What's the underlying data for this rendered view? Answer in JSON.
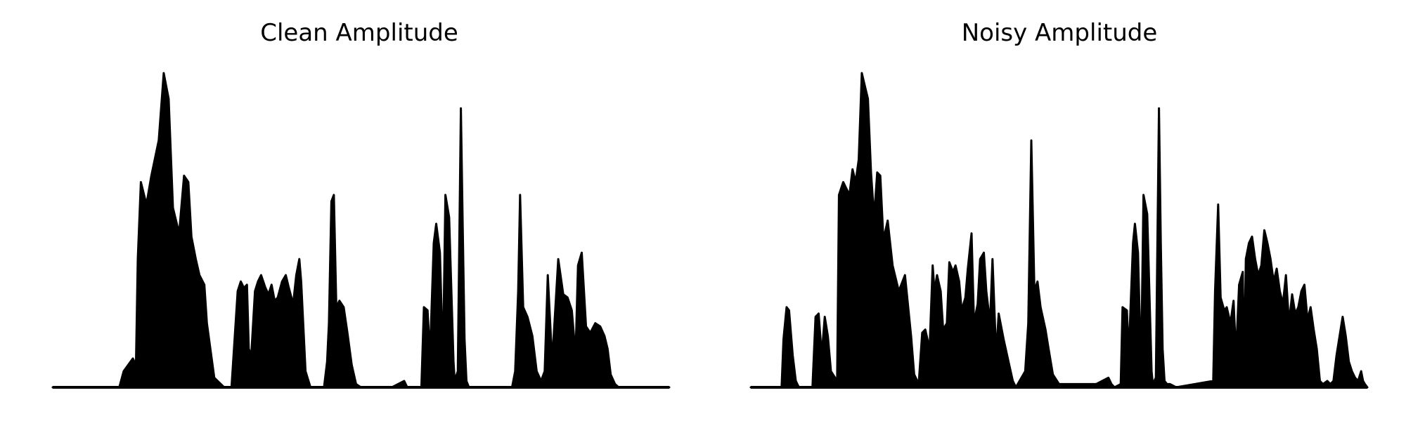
{
  "chart_data": [
    {
      "type": "area",
      "title": "Clean Amplitude",
      "xlabel": "",
      "ylabel": "",
      "axes_visible": false,
      "grid": false,
      "color": "#000000",
      "ylim": [
        0,
        1
      ],
      "description_of_values": "normalized amplitude envelope, 0 = baseline, 1 = highest peak",
      "segments": [
        {
          "x": [
            0,
            0.108,
            0.115,
            0.13,
            0.135,
            0.138,
            0.143,
            0.152,
            0.16,
            0.172,
            0.18,
            0.183,
            0.188,
            0.195,
            0.205,
            0.213,
            0.22,
            0.225,
            0.232,
            0.238,
            0.246,
            0.25,
            0.262,
            0.278,
            0.285
          ],
          "y": [
            0,
            0,
            0.05,
            0.09,
            0.07,
            0.4,
            0.64,
            0.57,
            0.66,
            0.77,
            0.98,
            0.95,
            0.9,
            0.56,
            0.48,
            0.66,
            0.64,
            0.47,
            0.4,
            0.35,
            0.32,
            0.2,
            0.03,
            0,
            0
          ]
        },
        {
          "x": [
            0.285,
            0.29,
            0.3,
            0.305,
            0.31,
            0.315,
            0.318,
            0.322,
            0.328,
            0.333,
            0.338,
            0.345,
            0.35,
            0.355,
            0.36,
            0.365,
            0.372,
            0.378,
            0.383,
            0.39,
            0.395,
            0.4,
            0.403,
            0.41,
            0.418,
            0.425,
            0.432
          ],
          "y": [
            0,
            0,
            0.3,
            0.33,
            0.31,
            0.32,
            0.12,
            0.1,
            0.3,
            0.33,
            0.35,
            0.31,
            0.29,
            0.32,
            0.27,
            0.28,
            0.33,
            0.35,
            0.31,
            0.26,
            0.35,
            0.4,
            0.33,
            0.05,
            0,
            0,
            0
          ]
        },
        {
          "x": [
            0.432,
            0.44,
            0.445,
            0.448,
            0.452,
            0.456,
            0.46,
            0.465,
            0.472,
            0.478,
            0.485,
            0.492,
            0.5,
            0.55,
            0.57,
            0.575,
            0.58
          ],
          "y": [
            0,
            0,
            0.08,
            0.2,
            0.58,
            0.6,
            0.25,
            0.27,
            0.25,
            0.17,
            0.07,
            0.01,
            0,
            0,
            0.02,
            0,
            0
          ]
        },
        {
          "x": [
            0.58,
            0.598,
            0.602,
            0.608,
            0.612,
            0.618,
            0.622,
            0.628,
            0.633,
            0.637,
            0.643,
            0.65,
            0.652,
            0.657,
            0.662,
            0.665,
            0.668,
            0.671,
            0.675,
            0.68,
            0.686
          ],
          "y": [
            0,
            0,
            0.25,
            0.24,
            0.1,
            0.45,
            0.51,
            0.42,
            0.08,
            0.6,
            0.53,
            0.08,
            0.02,
            0.05,
            0.87,
            0.5,
            0.15,
            0.02,
            0,
            0,
            0
          ]
        },
        {
          "x": [
            0.686,
            0.745,
            0.75,
            0.755,
            0.758,
            0.763,
            0.77,
            0.778,
            0.785,
            0.792,
            0.798,
            0.803,
            0.81,
            0.815,
            0.82,
            0.828,
            0.835,
            0.842,
            0.848,
            0.852,
            0.858,
            0.865,
            0.872,
            0.88,
            0.888,
            0.895,
            0.9,
            0.905,
            0.912,
            0.918,
            0.925,
            0.93,
            0.937,
            0.945,
            0.952,
            0.96,
            0.97,
            0.98,
            1
          ],
          "y": [
            0,
            0,
            0.05,
            0.3,
            0.6,
            0.25,
            0.22,
            0.16,
            0.05,
            0.02,
            0.05,
            0.35,
            0.08,
            0.24,
            0.4,
            0.29,
            0.28,
            0.24,
            0.1,
            0.38,
            0.42,
            0.19,
            0.17,
            0.2,
            0.19,
            0.16,
            0.12,
            0.04,
            0.01,
            0,
            0,
            0,
            0,
            0,
            0,
            0,
            0,
            0,
            0
          ]
        }
      ]
    },
    {
      "type": "area",
      "title": "Noisy Amplitude",
      "xlabel": "",
      "ylabel": "",
      "axes_visible": false,
      "grid": false,
      "color": "#000000",
      "ylim": [
        0,
        1
      ],
      "description_of_values": "normalized amplitude envelope, 0 = baseline, 1 = highest peak",
      "segments": [
        {
          "x": [
            0,
            0.05,
            0.053,
            0.058,
            0.062,
            0.068,
            0.073,
            0.078,
            0.1,
            0.105,
            0.11,
            0.115,
            0.12,
            0.125,
            0.13,
            0.14,
            0.143,
            0.15,
            0.155,
            0.16,
            0.165,
            0.17,
            0.175,
            0.18,
            0.185,
            0.19,
            0.195,
            0.2,
            0.205,
            0.21,
            0.215,
            0.222,
            0.23,
            0.24,
            0.25,
            0.26,
            0.265,
            0.27,
            0.272
          ],
          "y": [
            0,
            0,
            0.15,
            0.25,
            0.24,
            0.1,
            0.02,
            0,
            0,
            0.22,
            0.23,
            0.1,
            0.22,
            0.16,
            0.05,
            0.02,
            0.6,
            0.64,
            0.62,
            0.6,
            0.68,
            0.64,
            0.71,
            0.98,
            0.94,
            0.9,
            0.67,
            0.53,
            0.67,
            0.66,
            0.46,
            0.52,
            0.38,
            0.3,
            0.35,
            0.16,
            0.04,
            0.02,
            0
          ]
        },
        {
          "x": [
            0.272,
            0.278,
            0.283,
            0.29,
            0.295,
            0.298,
            0.302,
            0.308,
            0.312,
            0.318,
            0.322,
            0.328,
            0.332,
            0.338,
            0.342,
            0.348,
            0.352,
            0.358,
            0.362,
            0.368,
            0.372,
            0.378,
            0.382,
            0.388,
            0.392,
            0.398,
            0.402,
            0.41,
            0.418,
            0.425,
            0.43
          ],
          "y": [
            0,
            0.17,
            0.18,
            0.12,
            0.38,
            0.3,
            0.35,
            0.3,
            0.18,
            0.2,
            0.39,
            0.36,
            0.38,
            0.33,
            0.24,
            0.28,
            0.37,
            0.48,
            0.2,
            0.26,
            0.4,
            0.42,
            0.3,
            0.2,
            0.4,
            0.1,
            0.23,
            0.15,
            0.08,
            0.02,
            0
          ]
        },
        {
          "x": [
            0.43,
            0.445,
            0.45,
            0.455,
            0.46,
            0.465,
            0.47,
            0.478,
            0.483,
            0.49,
            0.5,
            0.56,
            0.58,
            0.585,
            0.59
          ],
          "y": [
            0,
            0.05,
            0.2,
            0.77,
            0.3,
            0.33,
            0.25,
            0.18,
            0.12,
            0.04,
            0.01,
            0.01,
            0.03,
            0.01,
            0
          ]
        },
        {
          "x": [
            0.59,
            0.6,
            0.603,
            0.61,
            0.613,
            0.62,
            0.623,
            0.628,
            0.633,
            0.637,
            0.643,
            0.65,
            0.652,
            0.657,
            0.662,
            0.665,
            0.668,
            0.671,
            0.675,
            0.68,
            0.69
          ],
          "y": [
            0,
            0.01,
            0.25,
            0.24,
            0.1,
            0.45,
            0.51,
            0.42,
            0.05,
            0.6,
            0.54,
            0.05,
            0.01,
            0.03,
            0.87,
            0.45,
            0.12,
            0.02,
            0.01,
            0.01,
            0
          ]
        },
        {
          "x": [
            0.69,
            0.75,
            0.753,
            0.758,
            0.762,
            0.768,
            0.772,
            0.778,
            0.783,
            0.787,
            0.792,
            0.798,
            0.8,
            0.803,
            0.808,
            0.813,
            0.818,
            0.823,
            0.828,
            0.833,
            0.838,
            0.843,
            0.848,
            0.853,
            0.858,
            0.863,
            0.868,
            0.873,
            0.878,
            0.883,
            0.888,
            0.893,
            0.898,
            0.903,
            0.908,
            0.913,
            0.918,
            0.923,
            0.928,
            0.935,
            0.94,
            0.945,
            0.95,
            0.96,
            0.965,
            0.97,
            0.975,
            0.98,
            0.985,
            0.99,
            0.993,
            0.996,
            1
          ],
          "y": [
            0,
            0.02,
            0.3,
            0.57,
            0.28,
            0.24,
            0.25,
            0.2,
            0.27,
            0.1,
            0.32,
            0.36,
            0.05,
            0.4,
            0.45,
            0.47,
            0.4,
            0.35,
            0.38,
            0.49,
            0.45,
            0.4,
            0.33,
            0.37,
            0.3,
            0.26,
            0.35,
            0.2,
            0.29,
            0.23,
            0.25,
            0.3,
            0.32,
            0.21,
            0.25,
            0.18,
            0.12,
            0.02,
            0.01,
            0.02,
            0.01,
            0.02,
            0.1,
            0.22,
            0.16,
            0.08,
            0.05,
            0.03,
            0.02,
            0.05,
            0.02,
            0.01,
            0
          ]
        }
      ]
    }
  ]
}
